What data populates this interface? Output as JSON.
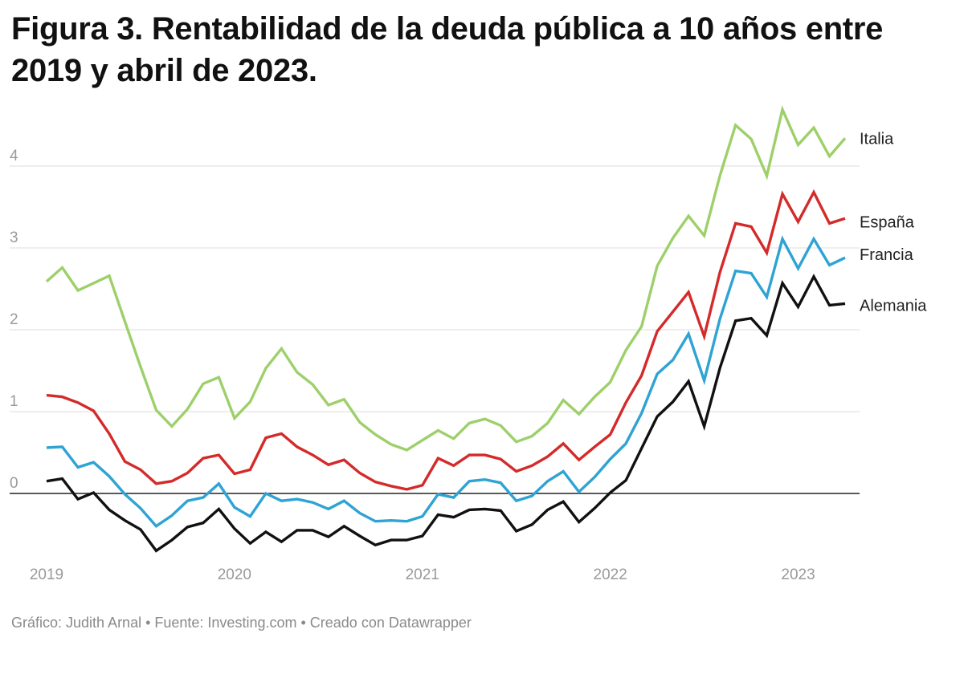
{
  "title": "Figura 3. Rentabilidad de la deuda pública a 10 años entre 2019 y abril de 2023.",
  "footer": "Gráfico: Judith Arnal • Fuente: Investing.com • Creado con Datawrapper",
  "chart_data": {
    "type": "line",
    "title": "Figura 3. Rentabilidad de la deuda pública a 10 años entre 2019 y abril de 2023.",
    "xlabel": "",
    "ylabel": "",
    "ylim": [
      -0.8,
      4.8
    ],
    "yticks": [
      0,
      1,
      2,
      3,
      4
    ],
    "xticks": [
      "2019",
      "2020",
      "2021",
      "2022",
      "2023"
    ],
    "xtick_positions": [
      0,
      12,
      24,
      36,
      48
    ],
    "grid": true,
    "zero_line": true,
    "legend": "direct labels at line ends (right)",
    "x": [
      "2019-01",
      "2019-02",
      "2019-03",
      "2019-04",
      "2019-05",
      "2019-06",
      "2019-07",
      "2019-08",
      "2019-09",
      "2019-10",
      "2019-11",
      "2019-12",
      "2020-01",
      "2020-02",
      "2020-03",
      "2020-04",
      "2020-05",
      "2020-06",
      "2020-07",
      "2020-08",
      "2020-09",
      "2020-10",
      "2020-11",
      "2020-12",
      "2021-01",
      "2021-02",
      "2021-03",
      "2021-04",
      "2021-05",
      "2021-06",
      "2021-07",
      "2021-08",
      "2021-09",
      "2021-10",
      "2021-11",
      "2021-12",
      "2022-01",
      "2022-02",
      "2022-03",
      "2022-04",
      "2022-05",
      "2022-06",
      "2022-07",
      "2022-08",
      "2022-09",
      "2022-10",
      "2022-11",
      "2022-12",
      "2023-01",
      "2023-02",
      "2023-03",
      "2023-04"
    ],
    "series": [
      {
        "name": "Italia",
        "color": "#9dd06a",
        "values": [
          2.59,
          2.76,
          2.48,
          2.57,
          2.66,
          2.1,
          1.55,
          1.02,
          0.82,
          1.03,
          1.34,
          1.42,
          0.92,
          1.12,
          1.53,
          1.77,
          1.48,
          1.33,
          1.08,
          1.15,
          0.87,
          0.72,
          0.6,
          0.53,
          0.65,
          0.77,
          0.67,
          0.86,
          0.91,
          0.83,
          0.63,
          0.7,
          0.86,
          1.14,
          0.97,
          1.18,
          1.36,
          1.75,
          2.04,
          2.78,
          3.12,
          3.39,
          3.15,
          3.88,
          4.5,
          4.33,
          3.88,
          4.69,
          4.26,
          4.47,
          4.12,
          4.34
        ]
      },
      {
        "name": "España",
        "color": "#d42a2a",
        "values": [
          1.2,
          1.18,
          1.11,
          1.01,
          0.73,
          0.39,
          0.29,
          0.12,
          0.15,
          0.25,
          0.43,
          0.47,
          0.24,
          0.29,
          0.68,
          0.73,
          0.57,
          0.47,
          0.35,
          0.41,
          0.25,
          0.14,
          0.09,
          0.05,
          0.1,
          0.43,
          0.34,
          0.47,
          0.47,
          0.42,
          0.27,
          0.34,
          0.45,
          0.61,
          0.41,
          0.57,
          0.72,
          1.11,
          1.44,
          1.98,
          2.22,
          2.46,
          1.92,
          2.7,
          3.3,
          3.26,
          2.94,
          3.66,
          3.32,
          3.68,
          3.3,
          3.36
        ]
      },
      {
        "name": "Francia",
        "color": "#2ea3d4",
        "values": [
          0.56,
          0.57,
          0.32,
          0.38,
          0.21,
          -0.01,
          -0.18,
          -0.4,
          -0.27,
          -0.09,
          -0.05,
          0.12,
          -0.17,
          -0.28,
          0.0,
          -0.09,
          -0.07,
          -0.11,
          -0.19,
          -0.09,
          -0.24,
          -0.34,
          -0.33,
          -0.34,
          -0.28,
          -0.01,
          -0.05,
          0.15,
          0.17,
          0.13,
          -0.09,
          -0.03,
          0.15,
          0.27,
          0.02,
          0.2,
          0.42,
          0.61,
          0.98,
          1.46,
          1.63,
          1.95,
          1.38,
          2.13,
          2.72,
          2.69,
          2.4,
          3.11,
          2.75,
          3.11,
          2.79,
          2.88
        ]
      },
      {
        "name": "Alemania",
        "color": "#111111",
        "values": [
          0.15,
          0.18,
          -0.07,
          0.01,
          -0.2,
          -0.33,
          -0.44,
          -0.7,
          -0.57,
          -0.41,
          -0.36,
          -0.19,
          -0.43,
          -0.61,
          -0.47,
          -0.59,
          -0.45,
          -0.45,
          -0.53,
          -0.4,
          -0.52,
          -0.63,
          -0.57,
          -0.57,
          -0.52,
          -0.26,
          -0.29,
          -0.2,
          -0.19,
          -0.21,
          -0.46,
          -0.38,
          -0.2,
          -0.1,
          -0.35,
          -0.18,
          0.01,
          0.16,
          0.55,
          0.94,
          1.12,
          1.37,
          0.82,
          1.53,
          2.11,
          2.14,
          1.93,
          2.57,
          2.28,
          2.65,
          2.3,
          2.32
        ]
      }
    ]
  }
}
